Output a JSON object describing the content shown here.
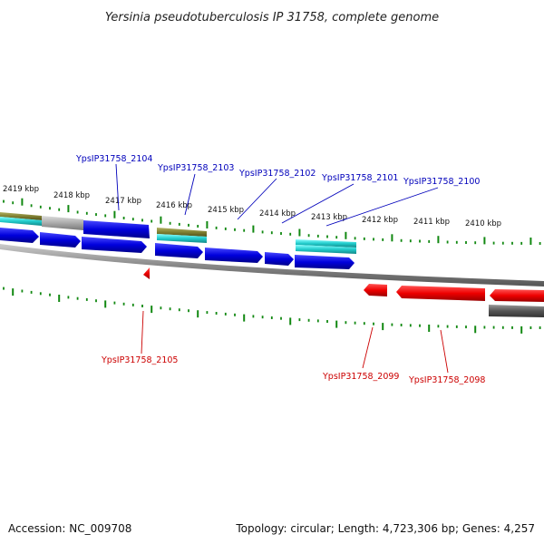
{
  "title": "Yersinia pseudotuberculosis IP 31758, complete genome",
  "footer": {
    "accession": "Accession: NC_009708",
    "topology": "Topology: circular; Length: 4,723,306 bp; Genes: 4,257"
  },
  "kbp_labels": [
    "2419 kbp",
    "2418 kbp",
    "2417 kbp",
    "2416 kbp",
    "2415 kbp",
    "2414 kbp",
    "2413 kbp",
    "2412 kbp",
    "2411 kbp",
    "2410 kbp"
  ],
  "forward_gene_labels": [
    "YpsIP31758_2104",
    "YpsIP31758_2103",
    "YpsIP31758_2102",
    "YpsIP31758_2101",
    "YpsIP31758_2100"
  ],
  "reverse_gene_labels": [
    "YpsIP31758_2105",
    "YpsIP31758_2099",
    "YpsIP31758_2098"
  ],
  "colors": {
    "forward_gene": "#0000dd",
    "reverse_gene": "#ee0000",
    "cds_teal": "#22cccc",
    "olive": "#808033",
    "grey": "#aaaaaa",
    "tick": "#118811",
    "backbone": "#888888",
    "forward_label": "#0000bb",
    "reverse_label": "#cc0000"
  }
}
